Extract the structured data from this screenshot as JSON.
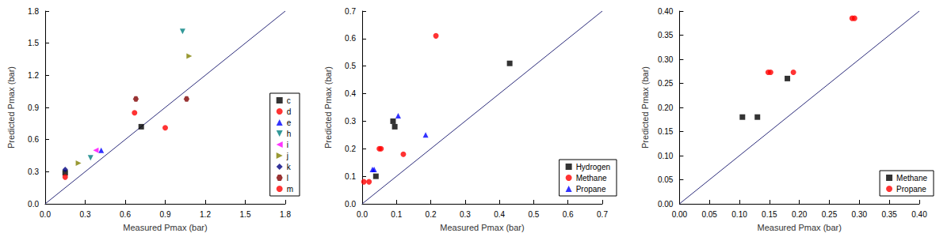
{
  "chart_data": [
    {
      "type": "scatter",
      "x_label": "Measured Pmax (bar)",
      "y_label": "Predicted Pmax (bar)",
      "xlim": [
        0,
        1.8
      ],
      "ylim": [
        0,
        1.8
      ],
      "xticks": [
        {
          "value": 0,
          "label": "0.0"
        },
        0.3,
        0.6,
        0.9,
        1.2,
        1.5,
        1.8
      ],
      "yticks": [
        {
          "value": 0,
          "label": "0.0"
        },
        0.3,
        0.6,
        0.9,
        1.2,
        1.5,
        1.8
      ],
      "grid": false,
      "legend": "right",
      "series": [
        {
          "name": "c",
          "color": "#000000",
          "marker": "square",
          "x": [
            0.15,
            0.72
          ],
          "values": [
            0.29,
            0.72
          ]
        },
        {
          "name": "d",
          "color": "#ff0000",
          "marker": "circle",
          "x": [
            0.15,
            0.67
          ],
          "values": [
            0.25,
            0.85
          ]
        },
        {
          "name": "e",
          "color": "#0000ff",
          "marker": "triangle",
          "x": [
            0.42
          ],
          "values": [
            0.5
          ]
        },
        {
          "name": "h",
          "color": "#008080",
          "marker": "triangle-down",
          "x": [
            0.34,
            1.03
          ],
          "values": [
            0.43,
            1.61
          ]
        },
        {
          "name": "i",
          "color": "#ff00ff",
          "marker": "triangle-left",
          "x": [
            0.38
          ],
          "values": [
            0.5
          ]
        },
        {
          "name": "j",
          "color": "#808000",
          "marker": "triangle-right",
          "x": [
            0.25,
            1.08
          ],
          "values": [
            0.38,
            1.38
          ]
        },
        {
          "name": "k",
          "color": "#000080",
          "marker": "diamond",
          "x": [
            0.15
          ],
          "values": [
            0.32
          ]
        },
        {
          "name": "l",
          "color": "#800000",
          "marker": "hexagon",
          "x": [
            0.68,
            1.06
          ],
          "values": [
            0.98,
            0.98
          ]
        },
        {
          "name": "m",
          "color": "#ff0000",
          "marker": "circle",
          "x": [
            0.9
          ],
          "values": [
            0.71
          ]
        }
      ]
    },
    {
      "type": "scatter",
      "x_label": "Measured Pmax (bar)",
      "y_label": "Predicted Pmax (bar)",
      "xlim": [
        0,
        0.7
      ],
      "ylim": [
        0,
        0.7
      ],
      "xticks": [
        {
          "value": 0,
          "label": "0.0"
        },
        0.1,
        0.2,
        0.3,
        0.4,
        0.5,
        0.6,
        0.7
      ],
      "yticks": [
        {
          "value": 0,
          "label": "0.0"
        },
        0.1,
        0.2,
        0.3,
        0.4,
        0.5,
        0.6,
        0.7
      ],
      "grid": false,
      "legend": "bottom-right",
      "series": [
        {
          "name": "Hydrogen",
          "color": "#000000",
          "marker": "square",
          "x": [
            0.04,
            0.09,
            0.095,
            0.43
          ],
          "values": [
            0.1,
            0.3,
            0.28,
            0.51
          ]
        },
        {
          "name": "Methane",
          "color": "#ff0000",
          "marker": "circle",
          "x": [
            0.005,
            0.02,
            0.05,
            0.055,
            0.12,
            0.215
          ],
          "values": [
            0.08,
            0.08,
            0.2,
            0.2,
            0.18,
            0.61
          ]
        },
        {
          "name": "Propane",
          "color": "#0000ff",
          "marker": "triangle",
          "x": [
            0.03,
            0.035,
            0.105,
            0.185
          ],
          "values": [
            0.125,
            0.125,
            0.32,
            0.25
          ]
        }
      ]
    },
    {
      "type": "scatter",
      "x_label": "Measured Pmax (bar)",
      "y_label": "Predicted Pmax (bar)",
      "xlim": [
        0,
        0.4
      ],
      "ylim": [
        0,
        0.4
      ],
      "xticks": [
        {
          "value": 0,
          "label": "0.00"
        },
        0.05,
        {
          "value": 0.1,
          "label": "0.10"
        },
        0.15,
        {
          "value": 0.2,
          "label": "0.20"
        },
        0.25,
        {
          "value": 0.3,
          "label": "0.30"
        },
        0.35,
        {
          "value": 0.4,
          "label": "0.40"
        }
      ],
      "yticks": [
        {
          "value": 0,
          "label": "0.00"
        },
        0.05,
        {
          "value": 0.1,
          "label": "0.10"
        },
        0.15,
        {
          "value": 0.2,
          "label": "0.20"
        },
        0.25,
        {
          "value": 0.3,
          "label": "0.30"
        },
        0.35,
        {
          "value": 0.4,
          "label": "0.40"
        }
      ],
      "grid": false,
      "legend": "bottom-right",
      "series": [
        {
          "name": "Methane",
          "color": "#000000",
          "marker": "square",
          "x": [
            0.105,
            0.13,
            0.18
          ],
          "values": [
            0.18,
            0.18,
            0.26
          ]
        },
        {
          "name": "Propane",
          "color": "#ff0000",
          "marker": "circle",
          "x": [
            0.148,
            0.152,
            0.19,
            0.288,
            0.292
          ],
          "values": [
            0.273,
            0.273,
            0.273,
            0.385,
            0.385
          ]
        }
      ]
    }
  ]
}
